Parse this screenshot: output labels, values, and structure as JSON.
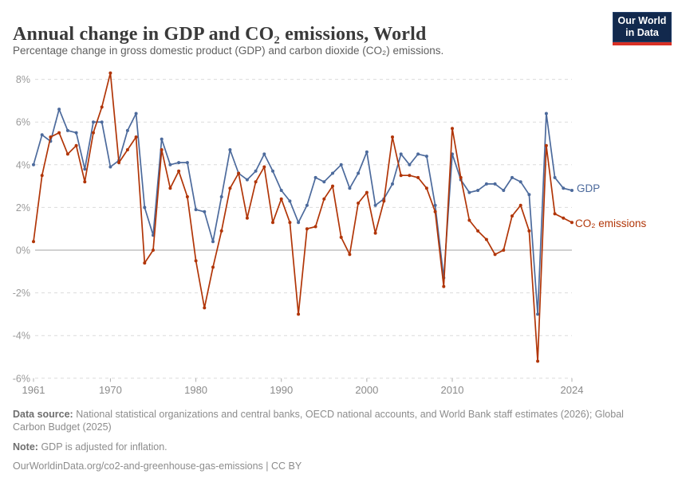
{
  "header": {
    "title": "Annual change in GDP and CO₂ emissions, World",
    "subtitle": "Percentage change in gross domestic product (GDP) and carbon dioxide (CO₂) emissions.",
    "logo": {
      "line1": "Our World",
      "line2": "in Data",
      "bg_color": "#12294d",
      "stripe_color": "#d93025"
    }
  },
  "chart_data": {
    "type": "line",
    "title": "Annual change in GDP and CO₂ emissions, World",
    "xlabel": "",
    "ylabel": "",
    "x": [
      1961,
      1962,
      1963,
      1964,
      1965,
      1966,
      1967,
      1968,
      1969,
      1970,
      1971,
      1972,
      1973,
      1974,
      1975,
      1976,
      1977,
      1978,
      1979,
      1980,
      1981,
      1982,
      1983,
      1984,
      1985,
      1986,
      1987,
      1988,
      1989,
      1990,
      1991,
      1992,
      1993,
      1994,
      1995,
      1996,
      1997,
      1998,
      1999,
      2000,
      2001,
      2002,
      2003,
      2004,
      2005,
      2006,
      2007,
      2008,
      2009,
      2010,
      2011,
      2012,
      2013,
      2014,
      2015,
      2016,
      2017,
      2018,
      2019,
      2020,
      2021,
      2022,
      2023,
      2024
    ],
    "series": [
      {
        "name": "GDP",
        "color": "#4c6a9c",
        "values": [
          4.0,
          5.4,
          5.1,
          6.6,
          5.6,
          5.5,
          3.8,
          6.0,
          6.0,
          3.9,
          4.2,
          5.6,
          6.4,
          2.0,
          0.7,
          5.2,
          4.0,
          4.1,
          4.1,
          1.9,
          1.8,
          0.4,
          2.5,
          4.7,
          3.6,
          3.3,
          3.7,
          4.5,
          3.7,
          2.8,
          2.3,
          1.3,
          2.1,
          3.4,
          3.2,
          3.6,
          4.0,
          2.9,
          3.6,
          4.6,
          2.1,
          2.4,
          3.1,
          4.5,
          4.0,
          4.5,
          4.4,
          2.1,
          -1.3,
          4.5,
          3.3,
          2.7,
          2.8,
          3.1,
          3.1,
          2.8,
          3.4,
          3.2,
          2.6,
          -3.0,
          6.4,
          3.4,
          2.9,
          2.8
        ]
      },
      {
        "name": "CO₂ emissions",
        "color": "#b13507",
        "values": [
          0.4,
          3.5,
          5.3,
          5.5,
          4.5,
          4.9,
          3.2,
          5.5,
          6.7,
          8.3,
          4.1,
          4.7,
          5.3,
          -0.6,
          0.0,
          4.7,
          2.9,
          3.7,
          2.5,
          -0.5,
          -2.7,
          -0.8,
          0.9,
          2.9,
          3.6,
          1.5,
          3.2,
          3.9,
          1.3,
          2.4,
          1.3,
          -3.0,
          1.0,
          1.1,
          2.4,
          3.0,
          0.6,
          -0.2,
          2.2,
          2.7,
          0.8,
          2.3,
          5.3,
          3.5,
          3.5,
          3.4,
          2.9,
          1.8,
          -1.7,
          5.7,
          3.4,
          1.4,
          0.9,
          0.5,
          -0.2,
          0.0,
          1.6,
          2.1,
          0.9,
          -5.2,
          4.9,
          1.7,
          1.5,
          1.3
        ]
      }
    ],
    "ylim": [
      -6,
      8
    ],
    "y_ticks": [
      8,
      6,
      4,
      2,
      0,
      -2,
      -4,
      -6
    ],
    "y_tick_labels": [
      "8%",
      "6%",
      "4%",
      "2%",
      "0%",
      "-2%",
      "-4%",
      "-6%"
    ],
    "x_ticks": [
      1961,
      1970,
      1980,
      1990,
      2000,
      2010,
      2024
    ],
    "grid": "horizontal-dashed",
    "zero_line": true,
    "legend_position": "end-of-line-labels",
    "colors": {
      "grid": "#dcdcdc",
      "zero_line": "#a3a3a3",
      "y_tick_label": "#9a9a9a",
      "x_tick_label": "#8b8b8b",
      "tick_mark": "#b0b0b0"
    }
  },
  "footer": {
    "data_source_label": "Data source:",
    "data_source_text": "National statistical organizations and central banks, OECD national accounts, and World Bank staff estimates (2026); Global Carbon Budget (2025)",
    "note_label": "Note:",
    "note_text": "GDP is adjusted for inflation.",
    "citation": "OurWorldinData.org/co2-and-greenhouse-gas-emissions | CC BY"
  }
}
